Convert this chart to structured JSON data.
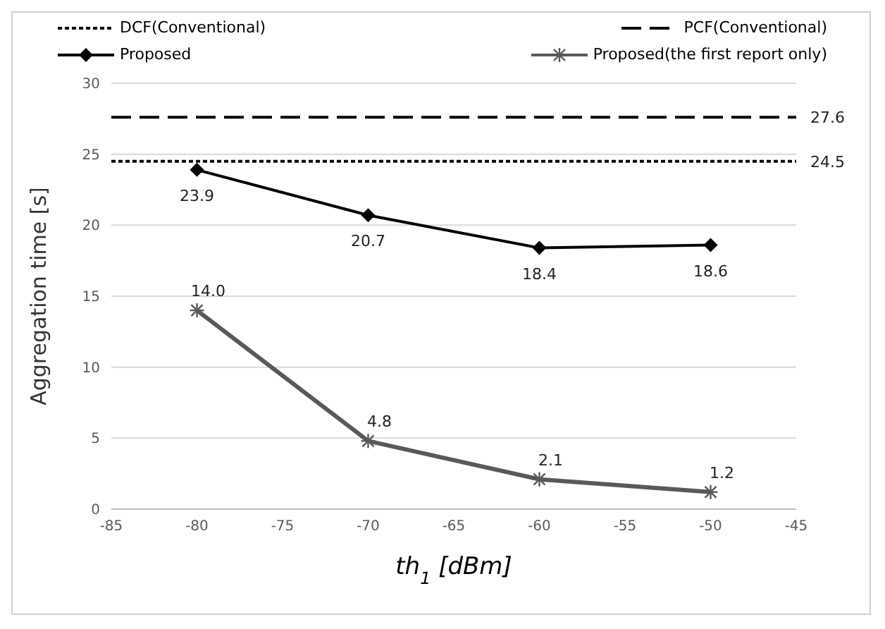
{
  "chart_data": {
    "type": "line",
    "xlabel": "th$_{1}$ [dBm]",
    "ylabel": "Aggregation time [s]",
    "xlim": [
      -85,
      -45
    ],
    "xticks": [
      -85,
      -80,
      -75,
      -70,
      -65,
      -60,
      -55,
      -50,
      -45
    ],
    "ylim": [
      0,
      30
    ],
    "yticks": [
      0,
      5,
      10,
      15,
      20,
      25,
      30
    ],
    "grid": "y",
    "legend": "top",
    "series": [
      {
        "name": "DCF(Conventional)",
        "color": "#000000",
        "x": [
          -85,
          -45
        ],
        "values": [
          24.5,
          24.5
        ],
        "line_style": "dotted",
        "marker": "none",
        "value_labels": [
          null,
          "24.5"
        ]
      },
      {
        "name": "PCF(Conventional)",
        "color": "#000000",
        "x": [
          -85,
          -45
        ],
        "values": [
          27.6,
          27.6
        ],
        "line_style": "dashed",
        "marker": "none",
        "value_labels": [
          null,
          "27.6"
        ]
      },
      {
        "name": "Proposed",
        "color": "#000000",
        "x": [
          -80,
          -70,
          -60,
          -50
        ],
        "values": [
          23.9,
          20.7,
          18.4,
          18.6
        ],
        "line_style": "solid",
        "marker": "diamond",
        "value_labels": [
          "23.9",
          "20.7",
          "18.4",
          "18.6"
        ]
      },
      {
        "name": "Proposed(the first report only)",
        "color": "#595959",
        "x": [
          -80,
          -70,
          -60,
          -50
        ],
        "values": [
          14.0,
          4.8,
          2.1,
          1.2
        ],
        "line_style": "solid",
        "marker": "cross",
        "value_labels": [
          "14.0",
          "4.8",
          "2.1",
          "1.2"
        ]
      }
    ]
  }
}
